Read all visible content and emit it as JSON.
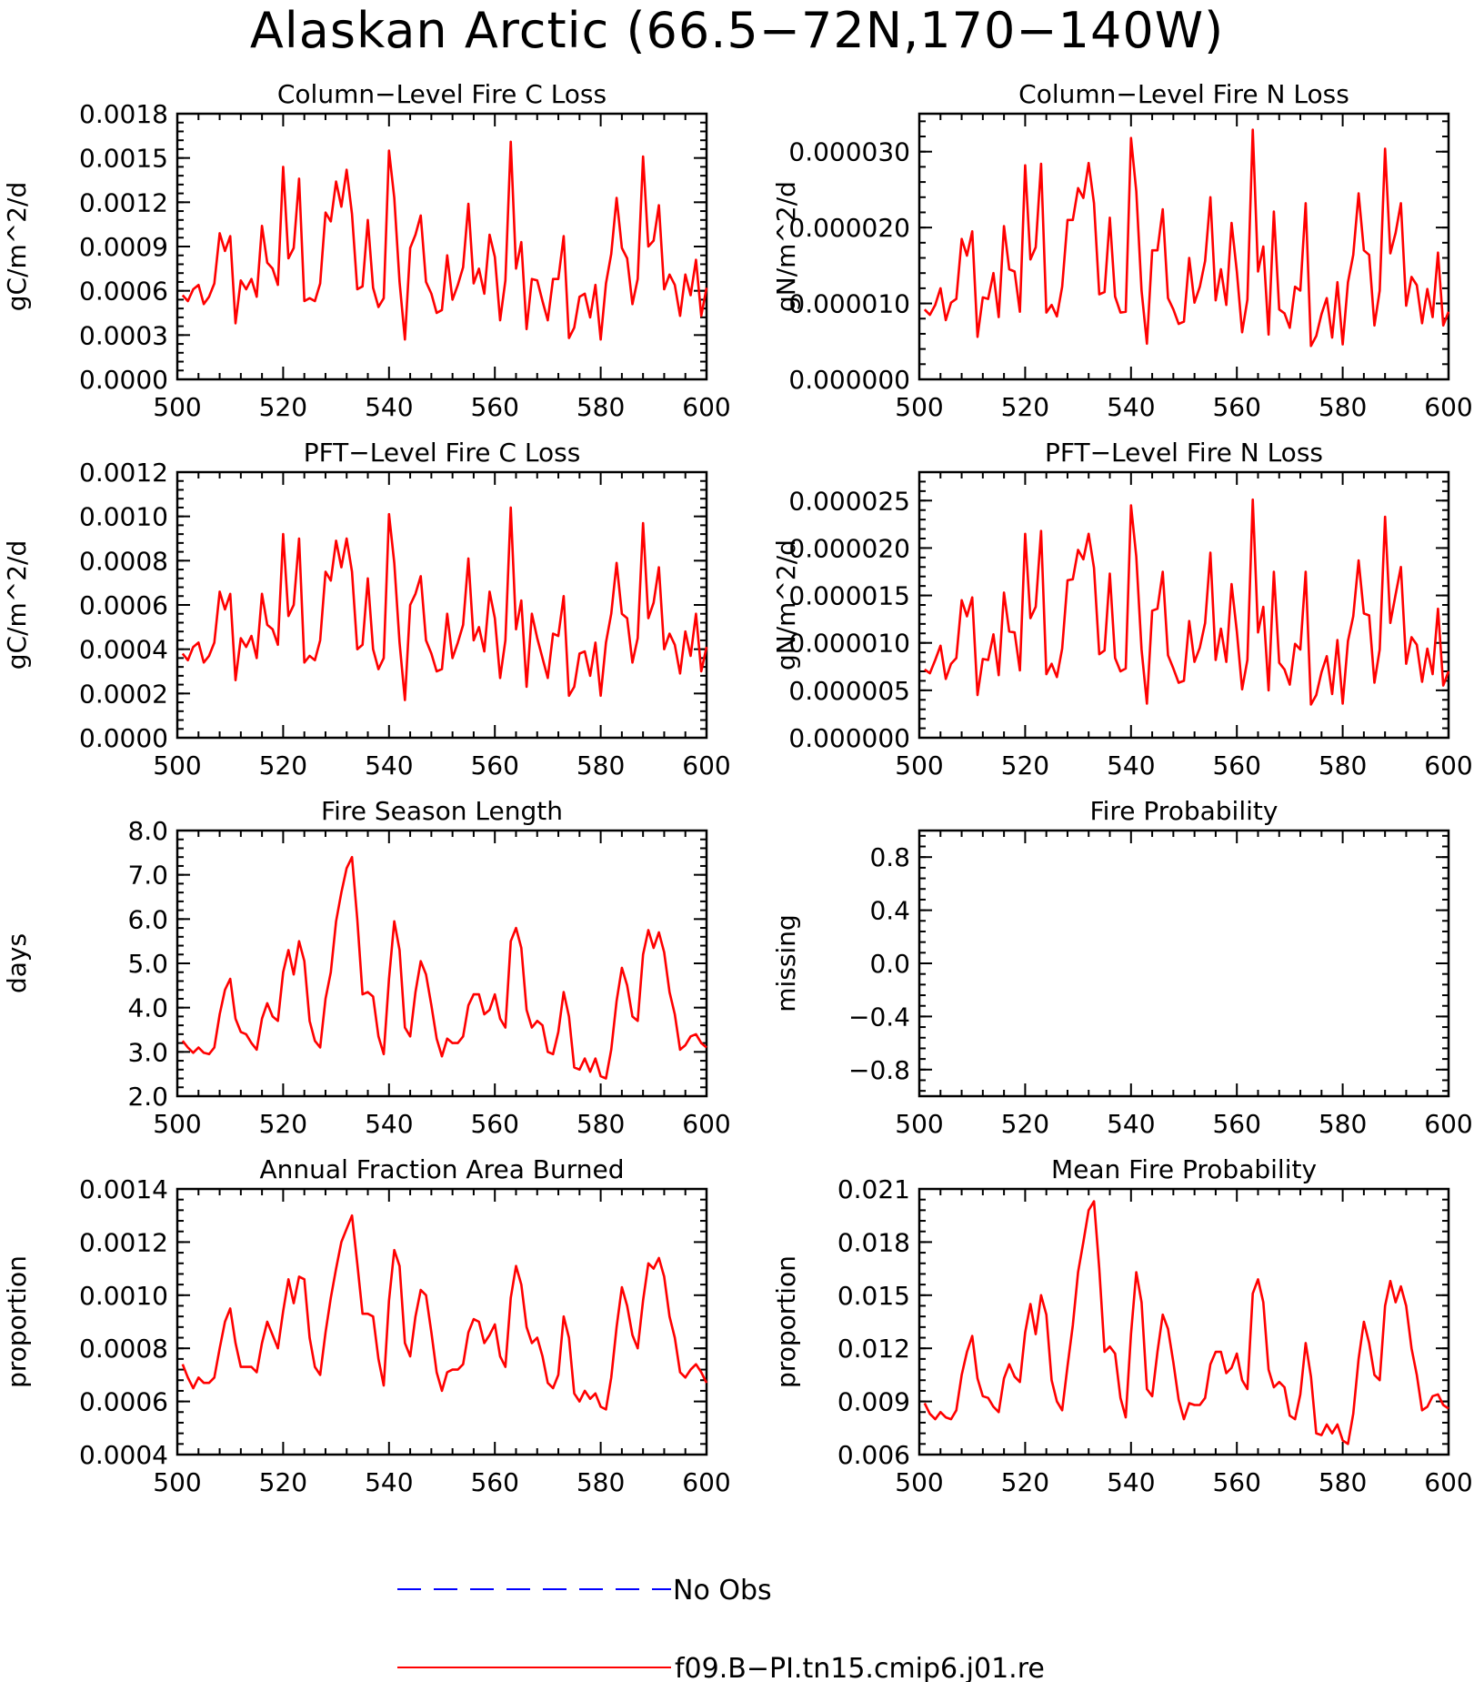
{
  "title": "Alaskan Arctic (66.5−72N,170−140W)",
  "legend": [
    {
      "label": "No Obs",
      "color": "#0000ff",
      "dash": true
    },
    {
      "label": "f09.B−PI.tn15.cmip6.j01.re",
      "color": "#ff0000",
      "dash": false
    }
  ],
  "chart_data": [
    {
      "type": "line",
      "title": "Column−Level Fire C Loss",
      "ylabel": "gC/m^2/d",
      "xlim": [
        500,
        600
      ],
      "xticks": [
        "500",
        "520",
        "540",
        "560",
        "580",
        "600"
      ],
      "ylim": [
        0,
        0.0018
      ],
      "yticks": [
        "0.0000",
        "0.0003",
        "0.0006",
        "0.0009",
        "0.0012",
        "0.0015",
        "0.0018"
      ],
      "x_start": 501,
      "series": [
        {
          "color": "#ff0000",
          "values": [
            0.00057,
            0.00053,
            0.00061,
            0.00064,
            0.00051,
            0.00056,
            0.00065,
            0.00099,
            0.00087,
            0.00097,
            0.00038,
            0.00067,
            0.00061,
            0.00068,
            0.00056,
            0.00104,
            0.00079,
            0.00075,
            0.00064,
            0.00144,
            0.00082,
            0.00089,
            0.00136,
            0.00053,
            0.00055,
            0.00053,
            0.00065,
            0.00113,
            0.00107,
            0.00134,
            0.00117,
            0.00142,
            0.00112,
            0.00061,
            0.00063,
            0.00108,
            0.00062,
            0.00049,
            0.00055,
            0.00155,
            0.00123,
            0.00066,
            0.00027,
            0.00089,
            0.00098,
            0.00111,
            0.00066,
            0.00058,
            0.00045,
            0.00047,
            0.00084,
            0.00054,
            0.00064,
            0.00076,
            0.00119,
            0.00065,
            0.00075,
            0.00058,
            0.00098,
            0.00083,
            0.0004,
            0.00067,
            0.00161,
            0.00075,
            0.00093,
            0.00034,
            0.00068,
            0.00067,
            0.00053,
            0.0004,
            0.00068,
            0.00068,
            0.00097,
            0.00028,
            0.00035,
            0.00056,
            0.00058,
            0.00042,
            0.00064,
            0.00027,
            0.00065,
            0.00085,
            0.00123,
            0.00089,
            0.00082,
            0.00051,
            0.00068,
            0.00151,
            0.0009,
            0.00094,
            0.00118,
            0.00061,
            0.00071,
            0.00064,
            0.00043,
            0.00071,
            0.00057,
            0.00081,
            0.00043,
            0.00062
          ]
        }
      ]
    },
    {
      "type": "line",
      "title": "Column−Level Fire N Loss",
      "ylabel": "gN/m^2/d",
      "xlim": [
        500,
        600
      ],
      "xticks": [
        "500",
        "520",
        "540",
        "560",
        "580",
        "600"
      ],
      "ylim": [
        0,
        3.5e-05
      ],
      "yticks": [
        "0.000000",
        "0.000010",
        "0.000020",
        "0.000030"
      ],
      "x_start": 501,
      "series": [
        {
          "color": "#ff0000",
          "values": [
            9.2e-06,
            8.5e-06,
            9.8e-06,
            1.2e-05,
            7.8e-06,
            1.01e-05,
            1.06e-05,
            1.85e-05,
            1.63e-05,
            1.95e-05,
            5.6e-06,
            1.08e-05,
            1.06e-05,
            1.4e-05,
            8.2e-06,
            2.02e-05,
            1.45e-05,
            1.42e-05,
            8.9e-06,
            2.82e-05,
            1.58e-05,
            1.74e-05,
            2.84e-05,
            8.8e-06,
            9.8e-06,
            8.3e-06,
            1.22e-05,
            2.1e-05,
            2.1e-05,
            2.52e-05,
            2.39e-05,
            2.85e-05,
            2.32e-05,
            1.12e-05,
            1.15e-05,
            2.13e-05,
            1.09e-05,
            8.8e-06,
            8.9e-06,
            3.18e-05,
            2.48e-05,
            1.17e-05,
            4.7e-06,
            1.7e-05,
            1.7e-05,
            2.24e-05,
            1.07e-05,
            9.2e-06,
            7.3e-06,
            7.6e-06,
            1.6e-05,
            1.01e-05,
            1.22e-05,
            1.56e-05,
            2.4e-05,
            1.04e-05,
            1.45e-05,
            9.8e-06,
            2.06e-05,
            1.42e-05,
            6.2e-06,
            1.05e-05,
            3.29e-05,
            1.42e-05,
            1.75e-05,
            5.9e-06,
            2.21e-05,
            9.2e-06,
            8.7e-06,
            6.8e-06,
            1.22e-05,
            1.17e-05,
            2.32e-05,
            4.4e-06,
            5.7e-06,
            8.6e-06,
            1.07e-05,
            5.5e-06,
            1.28e-05,
            4.6e-06,
            1.28e-05,
            1.64e-05,
            2.45e-05,
            1.7e-05,
            1.64e-05,
            7.1e-06,
            1.17e-05,
            3.04e-05,
            1.66e-05,
            1.93e-05,
            2.32e-05,
            9.7e-06,
            1.35e-05,
            1.24e-05,
            7.4e-06,
            1.19e-05,
            8.2e-06,
            1.67e-05,
            7.1e-06,
            8.9e-06
          ]
        }
      ]
    },
    {
      "type": "line",
      "title": "PFT−Level Fire C Loss",
      "ylabel": "gC/m^2/d",
      "xlim": [
        500,
        600
      ],
      "xticks": [
        "500",
        "520",
        "540",
        "560",
        "580",
        "600"
      ],
      "ylim": [
        0,
        0.0012
      ],
      "yticks": [
        "0.0000",
        "0.0002",
        "0.0004",
        "0.0006",
        "0.0008",
        "0.0010",
        "0.0012"
      ],
      "x_start": 501,
      "series": [
        {
          "color": "#ff0000",
          "values": [
            0.00038,
            0.00035,
            0.00041,
            0.00043,
            0.00034,
            0.00037,
            0.00043,
            0.00066,
            0.00058,
            0.00065,
            0.00026,
            0.00045,
            0.00041,
            0.00046,
            0.00036,
            0.00065,
            0.00051,
            0.00049,
            0.00042,
            0.00092,
            0.00055,
            0.0006,
            0.0009,
            0.00034,
            0.00037,
            0.00035,
            0.00044,
            0.00075,
            0.00071,
            0.00089,
            0.00077,
            0.0009,
            0.00075,
            0.0004,
            0.00042,
            0.00072,
            0.0004,
            0.00031,
            0.00036,
            0.00101,
            0.00079,
            0.00043,
            0.00017,
            0.0006,
            0.00065,
            0.00073,
            0.00044,
            0.00038,
            0.0003,
            0.00031,
            0.00056,
            0.00036,
            0.00043,
            0.00051,
            0.00081,
            0.00044,
            0.0005,
            0.00039,
            0.00066,
            0.00054,
            0.00027,
            0.00044,
            0.00104,
            0.00049,
            0.00062,
            0.00023,
            0.00056,
            0.00045,
            0.00036,
            0.00027,
            0.00047,
            0.00046,
            0.00064,
            0.00019,
            0.00023,
            0.00038,
            0.00039,
            0.00028,
            0.00043,
            0.00019,
            0.00043,
            0.00056,
            0.00079,
            0.00056,
            0.00054,
            0.00034,
            0.00045,
            0.00097,
            0.00054,
            0.00061,
            0.00077,
            0.0004,
            0.00047,
            0.00042,
            0.00029,
            0.00048,
            0.00037,
            0.00056,
            0.0003,
            0.00041
          ]
        }
      ]
    },
    {
      "type": "line",
      "title": "PFT−Level Fire N Loss",
      "ylabel": "gN/m^2/d",
      "xlim": [
        500,
        600
      ],
      "xticks": [
        "500",
        "520",
        "540",
        "560",
        "580",
        "600"
      ],
      "ylim": [
        0,
        2.8e-05
      ],
      "yticks": [
        "0.000000",
        "0.000005",
        "0.000010",
        "0.000015",
        "0.000020",
        "0.000025"
      ],
      "x_start": 501,
      "series": [
        {
          "color": "#ff0000",
          "values": [
            7.2e-06,
            6.8e-06,
            8.2e-06,
            9.7e-06,
            6.2e-06,
            7.8e-06,
            8.4e-06,
            1.45e-05,
            1.28e-05,
            1.48e-05,
            4.5e-06,
            8.3e-06,
            8.2e-06,
            1.09e-05,
            6.6e-06,
            1.53e-05,
            1.12e-05,
            1.11e-05,
            7.1e-06,
            2.15e-05,
            1.26e-05,
            1.38e-05,
            2.18e-05,
            6.7e-06,
            7.8e-06,
            6.4e-06,
            9.4e-06,
            1.66e-05,
            1.67e-05,
            1.98e-05,
            1.88e-05,
            2.15e-05,
            1.79e-05,
            8.8e-06,
            9.2e-06,
            1.73e-05,
            8.4e-06,
            7e-06,
            7.3e-06,
            2.45e-05,
            1.91e-05,
            9.3e-06,
            3.6e-06,
            1.34e-05,
            1.36e-05,
            1.75e-05,
            8.7e-06,
            7.3e-06,
            5.8e-06,
            6e-06,
            1.23e-05,
            8e-06,
            9.5e-06,
            1.21e-05,
            1.95e-05,
            8.2e-06,
            1.15e-05,
            8e-06,
            1.62e-05,
            1.12e-05,
            5.1e-06,
            8.2e-06,
            2.51e-05,
            1.11e-05,
            1.38e-05,
            5e-06,
            1.75e-05,
            7.9e-06,
            7.2e-06,
            5.6e-06,
            9.9e-06,
            9.3e-06,
            1.75e-05,
            3.5e-06,
            4.5e-06,
            6.9e-06,
            8.6e-06,
            4.6e-06,
            1.03e-05,
            3.6e-06,
            1.02e-05,
            1.28e-05,
            1.87e-05,
            1.31e-05,
            1.29e-05,
            5.8e-06,
            9.3e-06,
            2.33e-05,
            1.21e-05,
            1.51e-05,
            1.8e-05,
            7.8e-06,
            1.06e-05,
            9.8e-06,
            5.9e-06,
            9.4e-06,
            6.7e-06,
            1.36e-05,
            5.5e-06,
            7e-06
          ]
        }
      ]
    },
    {
      "type": "line",
      "title": "Fire Season Length",
      "ylabel": "days",
      "xlim": [
        500,
        600
      ],
      "xticks": [
        "500",
        "520",
        "540",
        "560",
        "580",
        "600"
      ],
      "ylim": [
        2,
        8
      ],
      "yticks": [
        "2.0",
        "3.0",
        "4.0",
        "5.0",
        "6.0",
        "7.0",
        "8.0"
      ],
      "x_start": 501,
      "series": [
        {
          "color": "#ff0000",
          "values": [
            3.25,
            3.1,
            2.98,
            3.1,
            2.98,
            2.95,
            3.1,
            3.85,
            4.4,
            4.65,
            3.75,
            3.45,
            3.4,
            3.2,
            3.05,
            3.75,
            4.1,
            3.8,
            3.7,
            4.8,
            5.3,
            4.75,
            5.5,
            5.05,
            3.7,
            3.25,
            3.1,
            4.2,
            4.8,
            5.95,
            6.6,
            7.15,
            7.4,
            6.0,
            4.3,
            4.35,
            4.25,
            3.35,
            2.95,
            4.65,
            5.95,
            5.3,
            3.55,
            3.35,
            4.35,
            5.05,
            4.75,
            4.05,
            3.3,
            2.9,
            3.3,
            3.2,
            3.2,
            3.35,
            4.05,
            4.3,
            4.3,
            3.85,
            3.95,
            4.3,
            3.75,
            3.55,
            5.5,
            5.8,
            5.35,
            3.95,
            3.55,
            3.7,
            3.6,
            3.0,
            2.95,
            3.45,
            4.35,
            3.8,
            2.65,
            2.6,
            2.85,
            2.55,
            2.85,
            2.45,
            2.4,
            3.05,
            4.15,
            4.9,
            4.5,
            3.8,
            3.7,
            5.2,
            5.75,
            5.35,
            5.7,
            5.25,
            4.35,
            3.85,
            3.05,
            3.15,
            3.35,
            3.4,
            3.2,
            3.1
          ]
        }
      ]
    },
    {
      "type": "line",
      "title": "Fire Probability",
      "ylabel": "missing",
      "xlim": [
        500,
        600
      ],
      "xticks": [
        "500",
        "520",
        "540",
        "560",
        "580",
        "600"
      ],
      "ylim": [
        -1,
        1
      ],
      "yticks": [
        "−0.8",
        "−0.4",
        "0.0",
        "0.4",
        "0.8"
      ],
      "ytick_values": [
        -0.8,
        -0.4,
        0.0,
        0.4,
        0.8
      ],
      "x_start": 501,
      "series": []
    },
    {
      "type": "line",
      "title": "Annual Fraction Area Burned",
      "ylabel": "proportion",
      "xlim": [
        500,
        600
      ],
      "xticks": [
        "500",
        "520",
        "540",
        "560",
        "580",
        "600"
      ],
      "ylim": [
        0.0004,
        0.0014
      ],
      "yticks": [
        "0.0004",
        "0.0006",
        "0.0008",
        "0.0010",
        "0.0012",
        "0.0014"
      ],
      "x_start": 501,
      "series": [
        {
          "color": "#ff0000",
          "values": [
            0.00074,
            0.00069,
            0.00065,
            0.00069,
            0.00067,
            0.00067,
            0.00069,
            0.0008,
            0.0009,
            0.00095,
            0.00082,
            0.00073,
            0.00073,
            0.00073,
            0.00071,
            0.00082,
            0.0009,
            0.00085,
            0.0008,
            0.00094,
            0.00106,
            0.00097,
            0.00107,
            0.00106,
            0.00084,
            0.00073,
            0.0007,
            0.00086,
            0.00099,
            0.0011,
            0.0012,
            0.00125,
            0.0013,
            0.00112,
            0.00093,
            0.00093,
            0.00092,
            0.00076,
            0.00066,
            0.00098,
            0.00117,
            0.00111,
            0.00082,
            0.00077,
            0.00092,
            0.00102,
            0.001,
            0.00086,
            0.00071,
            0.00064,
            0.00071,
            0.00072,
            0.00072,
            0.00074,
            0.00086,
            0.00091,
            0.0009,
            0.00082,
            0.00085,
            0.00089,
            0.00077,
            0.00073,
            0.00099,
            0.00111,
            0.00104,
            0.00088,
            0.00082,
            0.00084,
            0.00077,
            0.00067,
            0.00065,
            0.0007,
            0.00092,
            0.00084,
            0.00063,
            0.0006,
            0.00064,
            0.00061,
            0.00063,
            0.00058,
            0.00057,
            0.00069,
            0.00088,
            0.00103,
            0.00096,
            0.00085,
            0.0008,
            0.00098,
            0.00112,
            0.0011,
            0.00114,
            0.00107,
            0.00092,
            0.00084,
            0.00071,
            0.00069,
            0.00072,
            0.00074,
            0.00071,
            0.00067
          ]
        }
      ]
    },
    {
      "type": "line",
      "title": "Mean Fire Probability",
      "ylabel": "proportion",
      "xlim": [
        500,
        600
      ],
      "xticks": [
        "500",
        "520",
        "540",
        "560",
        "580",
        "600"
      ],
      "ylim": [
        0.006,
        0.021
      ],
      "yticks": [
        "0.006",
        "0.009",
        "0.012",
        "0.015",
        "0.018",
        "0.021"
      ],
      "x_start": 501,
      "series": [
        {
          "color": "#ff0000",
          "values": [
            0.0089,
            0.0083,
            0.008,
            0.0084,
            0.0081,
            0.008,
            0.0085,
            0.0105,
            0.0118,
            0.0127,
            0.0103,
            0.0093,
            0.0092,
            0.0087,
            0.0084,
            0.0103,
            0.0111,
            0.0104,
            0.0101,
            0.0129,
            0.0145,
            0.0128,
            0.015,
            0.0139,
            0.0102,
            0.009,
            0.0085,
            0.011,
            0.0133,
            0.0163,
            0.018,
            0.0198,
            0.0203,
            0.0165,
            0.0118,
            0.0121,
            0.0117,
            0.0092,
            0.0081,
            0.0128,
            0.0163,
            0.0146,
            0.0097,
            0.0093,
            0.0118,
            0.0139,
            0.0131,
            0.0112,
            0.0091,
            0.008,
            0.0089,
            0.0088,
            0.0088,
            0.0092,
            0.0111,
            0.0118,
            0.0118,
            0.0106,
            0.0109,
            0.0117,
            0.0102,
            0.0097,
            0.0151,
            0.0159,
            0.0146,
            0.0108,
            0.0098,
            0.0101,
            0.0098,
            0.0082,
            0.008,
            0.0094,
            0.0123,
            0.0104,
            0.0072,
            0.0071,
            0.0077,
            0.0072,
            0.0077,
            0.0068,
            0.0066,
            0.0083,
            0.0114,
            0.0135,
            0.0123,
            0.0105,
            0.0102,
            0.0144,
            0.0158,
            0.0146,
            0.0155,
            0.0144,
            0.012,
            0.0105,
            0.0085,
            0.0087,
            0.0093,
            0.0094,
            0.0088,
            0.0086
          ]
        }
      ]
    }
  ]
}
